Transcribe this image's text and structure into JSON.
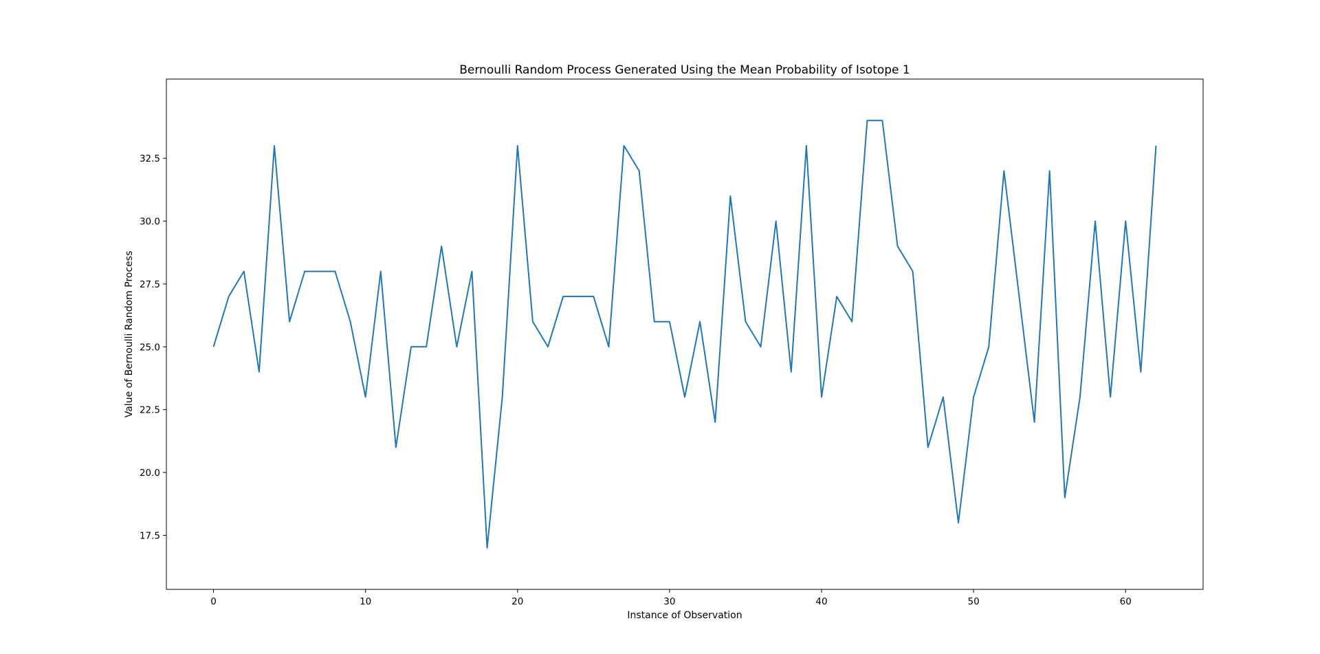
{
  "chart_data": {
    "type": "line",
    "title": "Bernoulli Random Process Generated Using the Mean Probability of Isotope 1",
    "xlabel": "Instance of Observation",
    "ylabel": "Value of Bernoulli Random Process",
    "xlim": [
      -3.1,
      65.1
    ],
    "ylim": [
      15.35,
      35.65
    ],
    "xticks": [
      0,
      10,
      20,
      30,
      40,
      50,
      60
    ],
    "xtick_labels": [
      "0",
      "10",
      "20",
      "30",
      "40",
      "50",
      "60"
    ],
    "yticks": [
      17.5,
      20.0,
      22.5,
      25.0,
      27.5,
      30.0,
      32.5
    ],
    "ytick_labels": [
      "17.5",
      "20.0",
      "22.5",
      "25.0",
      "27.5",
      "30.0",
      "32.5"
    ],
    "grid": false,
    "legend": "none",
    "series": [
      {
        "color": "#1f77b4",
        "x": [
          0,
          1,
          2,
          3,
          4,
          5,
          6,
          7,
          8,
          9,
          10,
          11,
          12,
          13,
          14,
          15,
          16,
          17,
          18,
          19,
          20,
          21,
          22,
          23,
          24,
          25,
          26,
          27,
          28,
          29,
          30,
          31,
          32,
          33,
          34,
          35,
          36,
          37,
          38,
          39,
          40,
          41,
          42,
          43,
          44,
          45,
          46,
          47,
          48,
          49,
          50,
          51,
          52,
          53,
          54,
          55,
          56,
          57,
          58,
          59,
          60,
          61,
          62
        ],
        "values": [
          25,
          27,
          28,
          24,
          33,
          26,
          28,
          28,
          28,
          26,
          23,
          28,
          21,
          25,
          25,
          29,
          25,
          28,
          17,
          23,
          33,
          26,
          25,
          27,
          27,
          27,
          25,
          33,
          32,
          26,
          26,
          23,
          26,
          22,
          31,
          26,
          25,
          30,
          24,
          33,
          23,
          27,
          26,
          34,
          34,
          29,
          28,
          21,
          23,
          18,
          23,
          25,
          32,
          27,
          22,
          32,
          19,
          23,
          30,
          23,
          30,
          24,
          33
        ]
      }
    ]
  }
}
